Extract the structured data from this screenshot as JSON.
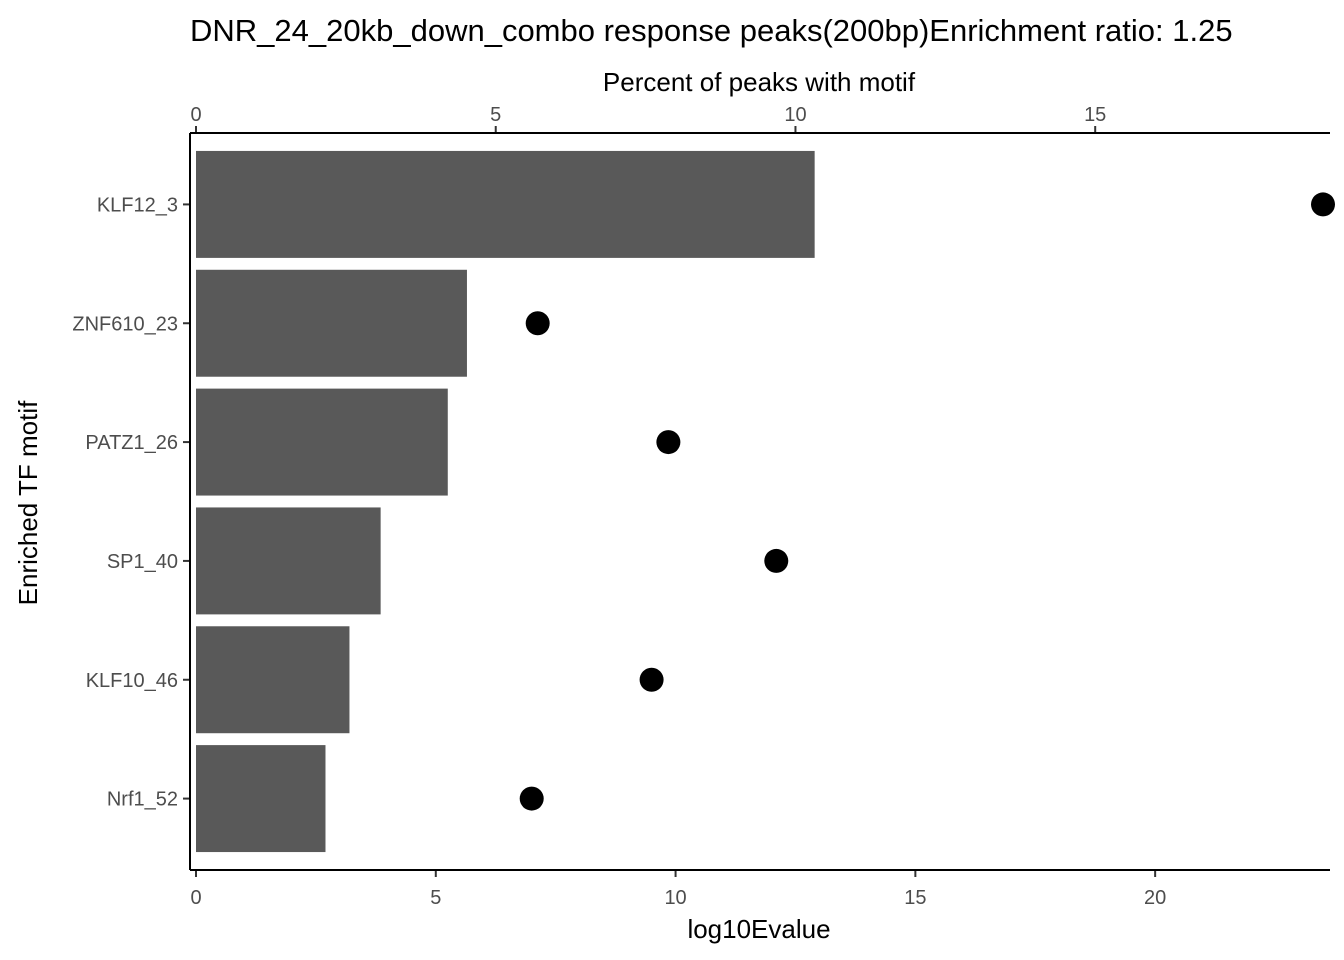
{
  "chart_data": {
    "type": "bar",
    "title": "DNR_24_20kb_down_combo response peaks(200bp)Enrichment ratio: 1.25",
    "xlabel": "log10Evalue",
    "x2label": "Percent of peaks with motif",
    "ylabel": "Enriched TF motif",
    "xlim": [
      0,
      23.5
    ],
    "x2lim": [
      0,
      18.8
    ],
    "x_ticks": [
      0,
      5,
      10,
      15,
      20
    ],
    "x2_ticks": [
      0,
      5,
      10,
      15
    ],
    "grid": false,
    "categories": [
      "KLF12_3",
      "ZNF610_23",
      "PATZ1_26",
      "SP1_40",
      "KLF10_46",
      "Nrf1_52"
    ],
    "series": [
      {
        "mark": "bar",
        "axis": "bottom",
        "values": [
          12.9,
          5.65,
          5.25,
          3.85,
          3.2,
          2.7
        ]
      },
      {
        "mark": "point",
        "axis": "top",
        "values": [
          18.8,
          5.7,
          7.88,
          9.68,
          7.6,
          5.6
        ]
      }
    ],
    "colors": {
      "bar": "#595959",
      "point": "#000000"
    }
  }
}
